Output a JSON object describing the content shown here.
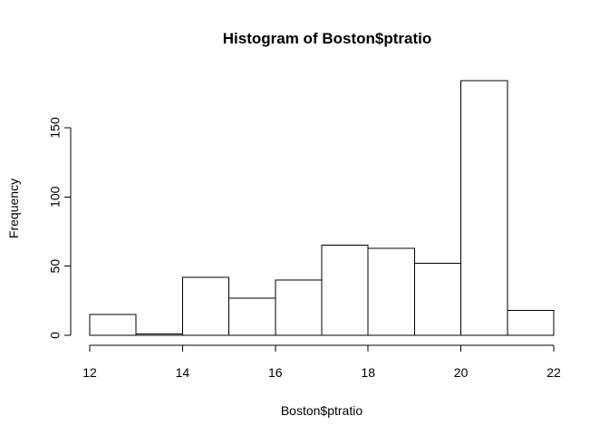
{
  "chart_data": {
    "type": "bar",
    "title": "Histogram of Boston$ptratio",
    "xlabel": "Boston$ptratio",
    "ylabel": "Frequency",
    "bins": [
      {
        "start": 12,
        "end": 13,
        "value": 15
      },
      {
        "start": 13,
        "end": 14,
        "value": 1
      },
      {
        "start": 14,
        "end": 15,
        "value": 42
      },
      {
        "start": 15,
        "end": 16,
        "value": 27
      },
      {
        "start": 16,
        "end": 17,
        "value": 40
      },
      {
        "start": 17,
        "end": 18,
        "value": 65
      },
      {
        "start": 18,
        "end": 19,
        "value": 63
      },
      {
        "start": 19,
        "end": 20,
        "value": 52
      },
      {
        "start": 20,
        "end": 21,
        "value": 184
      },
      {
        "start": 21,
        "end": 22,
        "value": 18
      }
    ],
    "x_ticks": [
      "12",
      "14",
      "16",
      "18",
      "20",
      "22"
    ],
    "y_ticks": [
      "0",
      "50",
      "100",
      "150"
    ],
    "xlim": [
      12,
      22
    ],
    "ylim": [
      0,
      184
    ],
    "grid": false,
    "legend": "none"
  },
  "colors": {
    "bar_fill": "#ffffff",
    "bar_stroke": "#000000",
    "axis": "#000000"
  }
}
